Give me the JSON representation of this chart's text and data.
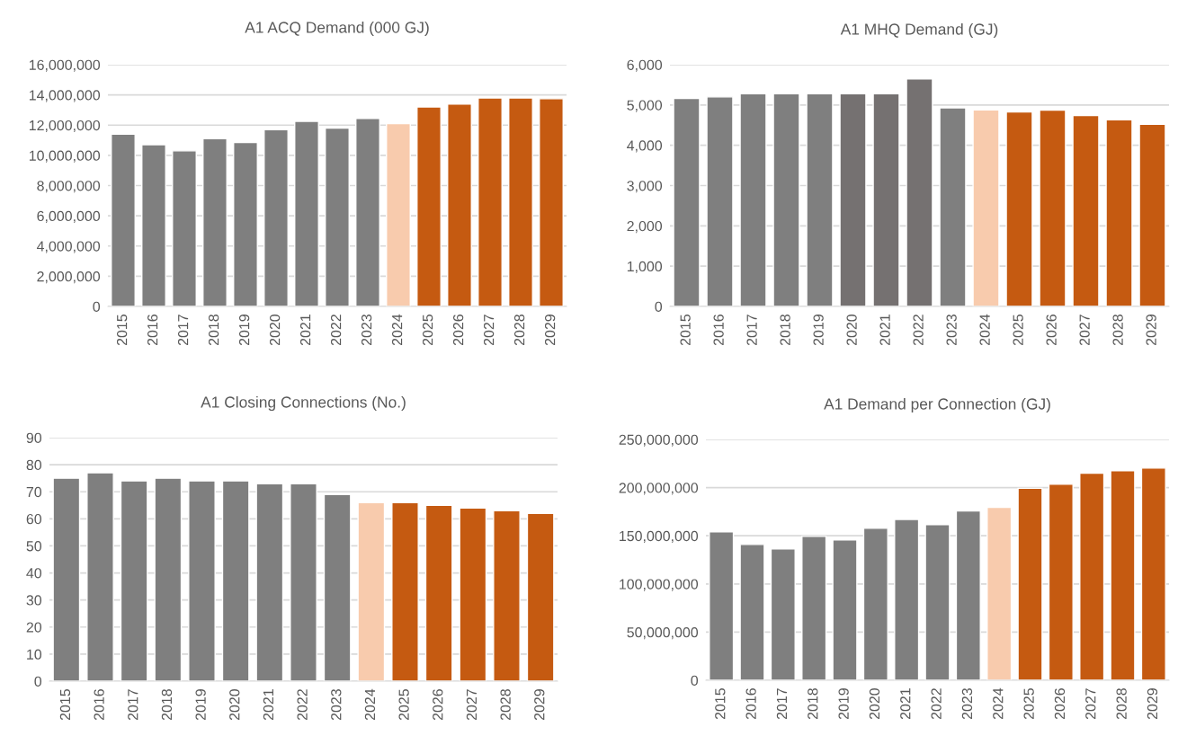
{
  "chart_data": [
    {
      "type": "bar",
      "title": "A1 ACQ Demand (000 GJ)",
      "categories": [
        "2015",
        "2016",
        "2017",
        "2018",
        "2019",
        "2020",
        "2021",
        "2022",
        "2023",
        "2024",
        "2025",
        "2026",
        "2027",
        "2028",
        "2029"
      ],
      "values": [
        11400000,
        10700000,
        10300000,
        11100000,
        10850000,
        11700000,
        12250000,
        11800000,
        12450000,
        12100000,
        13200000,
        13400000,
        13800000,
        13800000,
        13750000
      ],
      "colors": [
        "#7f7f7f",
        "#7f7f7f",
        "#7f7f7f",
        "#7f7f7f",
        "#7f7f7f",
        "#7f7f7f",
        "#7f7f7f",
        "#7f7f7f",
        "#7f7f7f",
        "#f8cbad",
        "#c55a11",
        "#c55a11",
        "#c55a11",
        "#c55a11",
        "#c55a11"
      ],
      "ylim": [
        0,
        16000000
      ],
      "yticks": [
        {
          "value": 0,
          "label": "0"
        },
        {
          "value": 2000000,
          "label": "2,000,000"
        },
        {
          "value": 4000000,
          "label": "4,000,000"
        },
        {
          "value": 6000000,
          "label": "6,000,000"
        },
        {
          "value": 8000000,
          "label": "8,000,000"
        },
        {
          "value": 10000000,
          "label": "10,000,000"
        },
        {
          "value": 12000000,
          "label": "12,000,000"
        },
        {
          "value": 14000000,
          "label": "14,000,000"
        },
        {
          "value": 16000000,
          "label": "16,000,000"
        }
      ],
      "grid": "y"
    },
    {
      "type": "bar",
      "title": "A1 MHQ Demand (GJ)",
      "categories": [
        "2015",
        "2016",
        "2017",
        "2018",
        "2019",
        "2020",
        "2021",
        "2022",
        "2023",
        "2024",
        "2025",
        "2026",
        "2027",
        "2028",
        "2029"
      ],
      "values": [
        5160,
        5200,
        5280,
        5280,
        5280,
        5280,
        5280,
        5650,
        4930,
        4880,
        4830,
        4870,
        4740,
        4630,
        4520
      ],
      "colors": [
        "#7f7f7f",
        "#7f7f7f",
        "#7f7f7f",
        "#7f7f7f",
        "#7f7f7f",
        "#757171",
        "#757171",
        "#757171",
        "#7f7f7f",
        "#f8cbad",
        "#c55a11",
        "#c55a11",
        "#c55a11",
        "#c55a11",
        "#c55a11"
      ],
      "ylim": [
        0,
        6000
      ],
      "yticks": [
        0,
        {
          "value": 1000,
          "label": "1,000"
        },
        {
          "value": 2000,
          "label": "2,000"
        },
        {
          "value": 3000,
          "label": "3,000"
        },
        {
          "value": 4000,
          "label": "4,000"
        },
        {
          "value": 5000,
          "label": "5,000"
        },
        {
          "value": 6000,
          "label": "6,000"
        }
      ],
      "grid": "y"
    },
    {
      "type": "bar",
      "title": "A1 Closing Connections (No.)",
      "categories": [
        "2015",
        "2016",
        "2017",
        "2018",
        "2019",
        "2020",
        "2021",
        "2022",
        "2023",
        "2024",
        "2025",
        "2026",
        "2027",
        "2028",
        "2029"
      ],
      "values": [
        75,
        77,
        74,
        75,
        74,
        74,
        73,
        73,
        69,
        66,
        66,
        65,
        64,
        63,
        62
      ],
      "colors": [
        "#7f7f7f",
        "#7f7f7f",
        "#7f7f7f",
        "#7f7f7f",
        "#7f7f7f",
        "#7f7f7f",
        "#7f7f7f",
        "#7f7f7f",
        "#7f7f7f",
        "#f8cbad",
        "#c55a11",
        "#c55a11",
        "#c55a11",
        "#c55a11",
        "#c55a11"
      ],
      "ylim": [
        0,
        90
      ],
      "yticks": [
        0,
        10,
        20,
        30,
        40,
        50,
        60,
        70,
        80,
        90
      ],
      "grid": "y"
    },
    {
      "type": "bar",
      "title": "A1 Demand per Connection (GJ)",
      "categories": [
        "2015",
        "2016",
        "2017",
        "2018",
        "2019",
        "2020",
        "2021",
        "2022",
        "2023",
        "2024",
        "2025",
        "2026",
        "2027",
        "2028",
        "2029"
      ],
      "values": [
        154000000,
        141000000,
        136400000,
        149400000,
        145600000,
        157800000,
        166900000,
        161600000,
        175700000,
        179500000,
        199300000,
        203500000,
        215000000,
        217600000,
        220300000
      ],
      "colors": [
        "#7f7f7f",
        "#7f7f7f",
        "#7f7f7f",
        "#7f7f7f",
        "#7f7f7f",
        "#7f7f7f",
        "#7f7f7f",
        "#7f7f7f",
        "#7f7f7f",
        "#f8cbad",
        "#c55a11",
        "#c55a11",
        "#c55a11",
        "#c55a11",
        "#c55a11"
      ],
      "ylim": [
        0,
        250000000
      ],
      "yticks": [
        0,
        {
          "value": 50000000,
          "label": "50,000,000"
        },
        {
          "value": 100000000,
          "label": "100,000,000"
        },
        {
          "value": 150000000,
          "label": "150,000,000"
        },
        {
          "value": 200000000,
          "label": "200,000,000"
        },
        {
          "value": 250000000,
          "label": "250,000,000"
        }
      ],
      "grid": "y"
    }
  ]
}
